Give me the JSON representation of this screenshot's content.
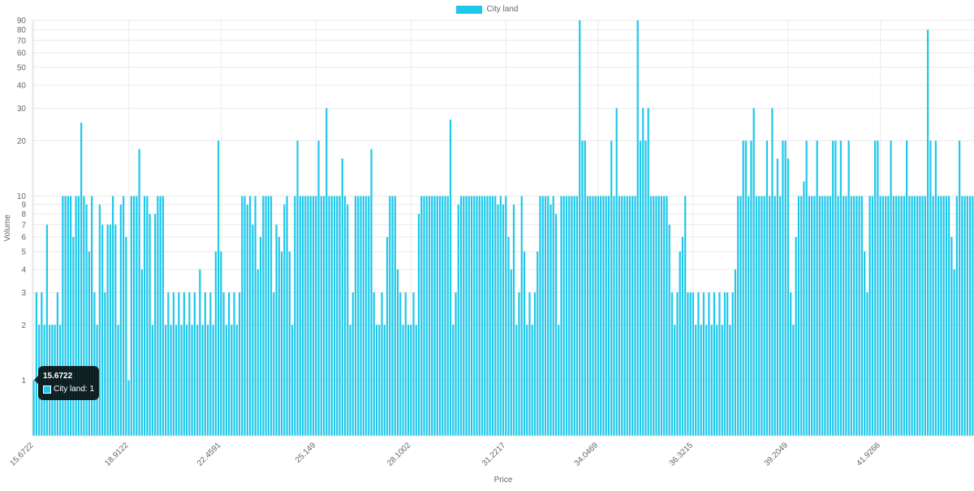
{
  "legend": {
    "label": "City land",
    "color": "#1ec8ea"
  },
  "tooltip": {
    "title": "15.6722",
    "line": "City land: 1"
  },
  "chart_data": {
    "type": "bar",
    "xlabel": "Price",
    "ylabel": "Volume",
    "yscale": "log",
    "ylim": [
      0.5,
      90
    ],
    "y_ticks": [
      1,
      2,
      3,
      4,
      5,
      6,
      7,
      8,
      9,
      10,
      20,
      30,
      40,
      50,
      60,
      70,
      80,
      90
    ],
    "grid": true,
    "legend_position": "top-center",
    "x_tick_labels": [
      "15.6722",
      "18.9122",
      "22.4591",
      "25.149",
      "28.1002",
      "31.2217",
      "34.0469",
      "36.3215",
      "39.2049",
      "41.9266"
    ],
    "series": [
      {
        "name": "City land",
        "color": "#1ec8ea",
        "values": [
          1,
          3,
          2,
          3,
          2,
          7,
          2,
          2,
          2,
          3,
          2,
          10,
          10,
          10,
          10,
          6,
          10,
          10,
          25,
          10,
          9,
          5,
          10,
          3,
          2,
          9,
          7,
          3,
          7,
          7,
          10,
          7,
          2,
          9,
          10,
          6,
          1,
          10,
          10,
          10,
          18,
          4,
          10,
          10,
          8,
          2,
          8,
          10,
          10,
          10,
          2,
          3,
          2,
          3,
          2,
          3,
          2,
          3,
          2,
          3,
          2,
          3,
          2,
          4,
          2,
          3,
          2,
          3,
          2,
          5,
          20,
          5,
          3,
          2,
          3,
          2,
          3,
          2,
          3,
          10,
          10,
          9,
          10,
          7,
          10,
          4,
          6,
          10,
          10,
          10,
          10,
          3,
          7,
          6,
          5,
          9,
          10,
          5,
          2,
          10,
          20,
          10,
          10,
          10,
          10,
          10,
          10,
          10,
          20,
          10,
          10,
          30,
          10,
          10,
          10,
          10,
          10,
          16,
          10,
          9,
          2,
          3,
          10,
          10,
          10,
          10,
          10,
          10,
          18,
          3,
          2,
          2,
          3,
          2,
          6,
          10,
          10,
          10,
          4,
          3,
          2,
          3,
          2,
          2,
          3,
          2,
          8,
          10,
          10,
          10,
          10,
          10,
          10,
          10,
          10,
          10,
          10,
          10,
          26,
          2,
          3,
          9,
          10,
          10,
          10,
          10,
          10,
          10,
          10,
          10,
          10,
          10,
          10,
          10,
          10,
          10,
          9,
          10,
          9,
          10,
          6,
          4,
          9,
          2,
          3,
          10,
          5,
          2,
          3,
          2,
          3,
          5,
          10,
          10,
          10,
          10,
          9,
          10,
          8,
          2,
          10,
          10,
          10,
          10,
          10,
          10,
          10,
          90,
          20,
          20,
          10,
          10,
          10,
          10,
          10,
          10,
          10,
          10,
          10,
          20,
          10,
          30,
          10,
          10,
          10,
          10,
          10,
          10,
          10,
          90,
          20,
          30,
          20,
          30,
          10,
          10,
          10,
          10,
          10,
          10,
          10,
          7,
          3,
          2,
          3,
          5,
          6,
          10,
          3,
          3,
          3,
          2,
          3,
          2,
          3,
          2,
          3,
          2,
          3,
          2,
          3,
          2,
          3,
          3,
          2,
          3,
          4,
          10,
          10,
          20,
          20,
          10,
          20,
          30,
          10,
          10,
          10,
          10,
          20,
          10,
          30,
          10,
          16,
          10,
          20,
          20,
          16,
          3,
          2,
          6,
          10,
          10,
          12,
          20,
          10,
          10,
          10,
          20,
          10,
          10,
          10,
          10,
          10,
          20,
          20,
          10,
          20,
          10,
          10,
          20,
          10,
          10,
          10,
          10,
          10,
          5,
          3,
          10,
          10,
          20,
          20,
          10,
          10,
          10,
          10,
          20,
          10,
          10,
          10,
          10,
          10,
          20,
          10,
          10,
          10,
          10,
          10,
          10,
          10,
          80,
          20,
          10,
          20,
          10,
          10,
          10,
          10,
          10,
          6,
          4,
          10,
          20,
          10,
          10,
          10,
          10,
          10
        ]
      }
    ]
  }
}
